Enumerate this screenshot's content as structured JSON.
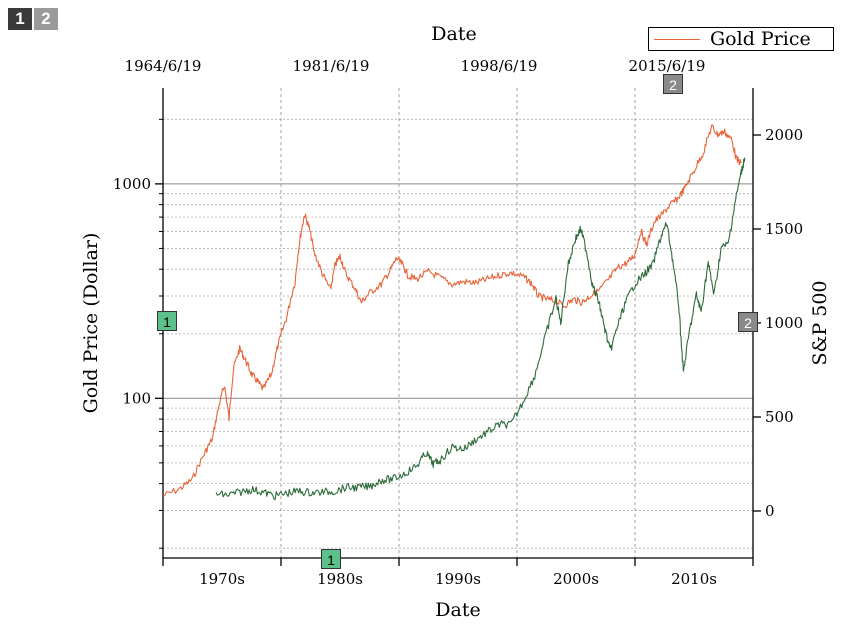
{
  "layer_tabs": [
    "1",
    "2"
  ],
  "legend": {
    "label": "Gold Price",
    "color": "#e8643a"
  },
  "badges": {
    "layer1": "1",
    "layer2": "2"
  },
  "colors": {
    "gold": "#e8643a",
    "sp500": "#2e6b3a",
    "badge_green": "#5cc08a",
    "badge_gray": "#8a8a8a"
  },
  "chart_data": {
    "type": "line",
    "title": "",
    "xlabel_bottom": "Date",
    "xlabel_top": "Date",
    "ylabel_left": "Gold Price (Dollar)",
    "ylabel_right": "S&P 500",
    "x_range": [
      1965.0,
      2015.0
    ],
    "left_axis": {
      "scale": "log",
      "range": [
        18,
        2800
      ],
      "tick_labels": [
        "100",
        "1000"
      ],
      "tick_values": [
        100,
        1000
      ]
    },
    "right_axis": {
      "scale": "linear",
      "range": [
        -250,
        2250
      ],
      "tick_labels": [
        "0",
        "500",
        "1000",
        "1500",
        "2000"
      ],
      "tick_values": [
        0,
        500,
        1000,
        1500,
        2000
      ]
    },
    "bottom_ticks": {
      "labels": [
        "1970s",
        "1980s",
        "1990s",
        "2000s",
        "2010s"
      ],
      "centers": [
        1970,
        1980,
        1990,
        2000,
        2010
      ],
      "boundaries": [
        1965,
        1975,
        1985,
        1995,
        2005,
        2015
      ]
    },
    "top_ticks": {
      "labels": [
        "1964/6/19",
        "1981/6/19",
        "1998/6/19",
        "2015/6/19"
      ]
    },
    "grid": true,
    "legend_position": "top-right",
    "series": [
      {
        "name": "Gold Price",
        "axis": "left",
        "color": "#e8643a",
        "points": [
          [
            1965.0,
            35
          ],
          [
            1966.5,
            38
          ],
          [
            1967.5,
            42
          ],
          [
            1968.5,
            55
          ],
          [
            1969.2,
            65
          ],
          [
            1969.8,
            95
          ],
          [
            1970.2,
            115
          ],
          [
            1970.6,
            80
          ],
          [
            1971.0,
            140
          ],
          [
            1971.5,
            170
          ],
          [
            1972.0,
            150
          ],
          [
            1972.5,
            130
          ],
          [
            1973.0,
            120
          ],
          [
            1973.5,
            110
          ],
          [
            1974.2,
            130
          ],
          [
            1974.8,
            180
          ],
          [
            1975.5,
            240
          ],
          [
            1976.2,
            350
          ],
          [
            1976.6,
            550
          ],
          [
            1977.0,
            720
          ],
          [
            1977.4,
            620
          ],
          [
            1977.8,
            480
          ],
          [
            1978.5,
            380
          ],
          [
            1979.2,
            320
          ],
          [
            1979.6,
            420
          ],
          [
            1980.0,
            460
          ],
          [
            1980.5,
            380
          ],
          [
            1981.2,
            330
          ],
          [
            1981.8,
            280
          ],
          [
            1982.5,
            310
          ],
          [
            1983.5,
            340
          ],
          [
            1984.2,
            390
          ],
          [
            1984.8,
            450
          ],
          [
            1985.3,
            420
          ],
          [
            1985.8,
            370
          ],
          [
            1986.5,
            360
          ],
          [
            1987.5,
            390
          ],
          [
            1988.5,
            365
          ],
          [
            1989.5,
            340
          ],
          [
            1990.5,
            350
          ],
          [
            1991.5,
            345
          ],
          [
            1992.5,
            360
          ],
          [
            1993.5,
            375
          ],
          [
            1994.5,
            385
          ],
          [
            1995.5,
            370
          ],
          [
            1996.2,
            345
          ],
          [
            1996.8,
            300
          ],
          [
            1997.5,
            290
          ],
          [
            1998.2,
            285
          ],
          [
            1999.0,
            270
          ],
          [
            1999.8,
            290
          ],
          [
            2000.5,
            280
          ],
          [
            2001.2,
            300
          ],
          [
            2002.0,
            320
          ],
          [
            2002.8,
            360
          ],
          [
            2003.6,
            410
          ],
          [
            2004.4,
            430
          ],
          [
            2005.0,
            470
          ],
          [
            2005.5,
            600
          ],
          [
            2006.0,
            520
          ],
          [
            2006.6,
            660
          ],
          [
            2007.3,
            720
          ],
          [
            2008.0,
            800
          ],
          [
            2008.6,
            850
          ],
          [
            2009.2,
            950
          ],
          [
            2010.0,
            1150
          ],
          [
            2010.8,
            1400
          ],
          [
            2011.5,
            1850
          ],
          [
            2012.0,
            1700
          ],
          [
            2012.6,
            1750
          ],
          [
            2013.2,
            1600
          ],
          [
            2013.6,
            1300
          ],
          [
            2014.0,
            1250
          ]
        ]
      },
      {
        "name": "S&P 500",
        "axis": "right",
        "color": "#2e6b3a",
        "points": [
          [
            1969.5,
            90
          ],
          [
            1970.5,
            85
          ],
          [
            1971.5,
            100
          ],
          [
            1972.5,
            115
          ],
          [
            1973.5,
            100
          ],
          [
            1974.5,
            80
          ],
          [
            1975.5,
            95
          ],
          [
            1976.5,
            105
          ],
          [
            1977.5,
            98
          ],
          [
            1978.5,
            100
          ],
          [
            1979.5,
            105
          ],
          [
            1980.5,
            125
          ],
          [
            1981.5,
            125
          ],
          [
            1982.5,
            130
          ],
          [
            1983.5,
            165
          ],
          [
            1984.5,
            170
          ],
          [
            1985.5,
            200
          ],
          [
            1986.5,
            240
          ],
          [
            1987.3,
            310
          ],
          [
            1987.9,
            250
          ],
          [
            1988.5,
            270
          ],
          [
            1989.5,
            340
          ],
          [
            1990.5,
            330
          ],
          [
            1991.5,
            380
          ],
          [
            1992.5,
            420
          ],
          [
            1993.5,
            460
          ],
          [
            1994.5,
            460
          ],
          [
            1995.5,
            580
          ],
          [
            1996.5,
            720
          ],
          [
            1997.5,
            950
          ],
          [
            1998.3,
            1130
          ],
          [
            1998.7,
            1000
          ],
          [
            1999.3,
            1300
          ],
          [
            1999.9,
            1440
          ],
          [
            2000.4,
            1500
          ],
          [
            2000.9,
            1380
          ],
          [
            2001.4,
            1200
          ],
          [
            2001.9,
            1120
          ],
          [
            2002.4,
            980
          ],
          [
            2002.9,
            850
          ],
          [
            2003.5,
            980
          ],
          [
            2004.2,
            1110
          ],
          [
            2005.0,
            1210
          ],
          [
            2005.8,
            1260
          ],
          [
            2006.5,
            1310
          ],
          [
            2007.2,
            1460
          ],
          [
            2007.7,
            1530
          ],
          [
            2008.2,
            1330
          ],
          [
            2008.7,
            1100
          ],
          [
            2009.1,
            740
          ],
          [
            2009.6,
            950
          ],
          [
            2010.2,
            1150
          ],
          [
            2010.6,
            1060
          ],
          [
            2011.2,
            1320
          ],
          [
            2011.7,
            1150
          ],
          [
            2012.3,
            1400
          ],
          [
            2012.9,
            1420
          ],
          [
            2013.5,
            1650
          ],
          [
            2014.0,
            1800
          ],
          [
            2014.3,
            1880
          ]
        ]
      }
    ]
  }
}
